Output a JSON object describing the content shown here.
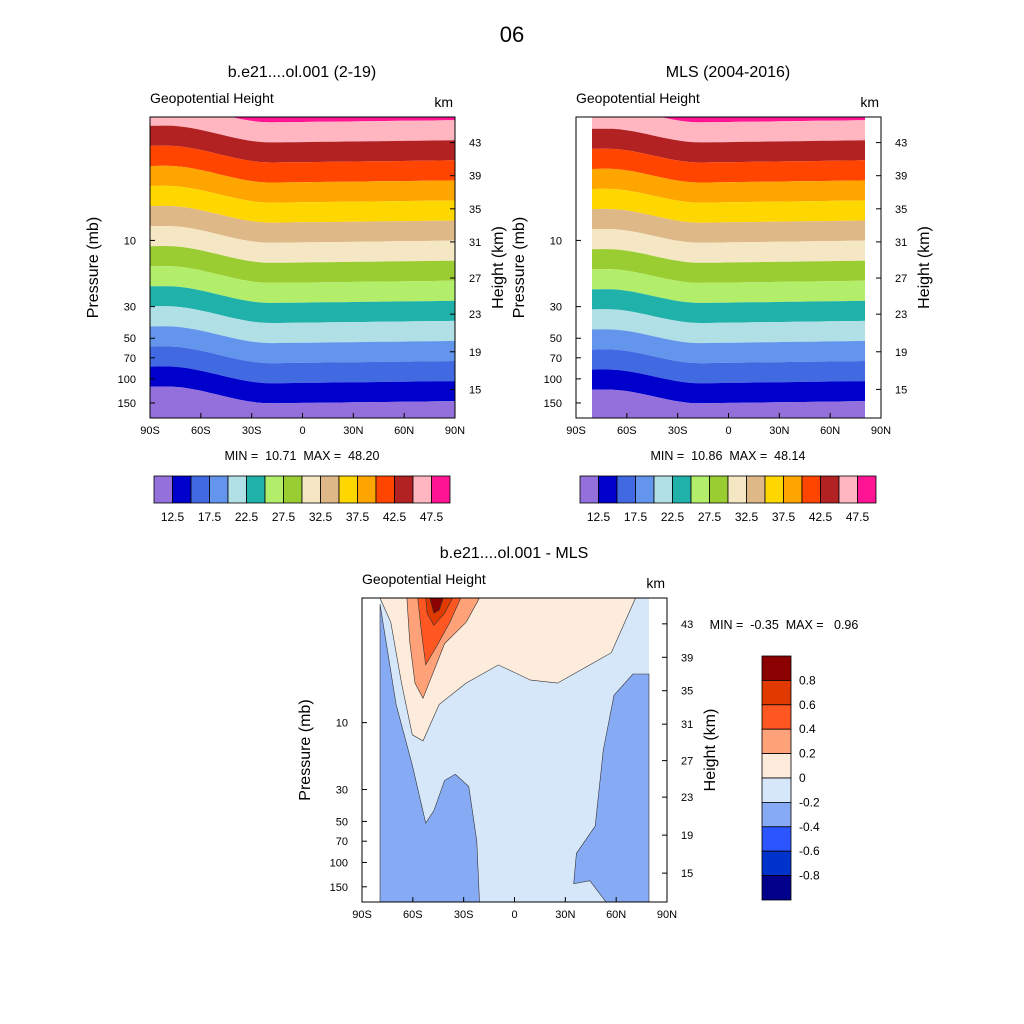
{
  "page_title": "06",
  "chart_data": [
    {
      "type": "filled-contour",
      "title": "b.e21....ol.001 (2-19)",
      "left_label": "Geopotential Height",
      "right_label": "km",
      "xlabel": "",
      "ylabel": "Pressure (mb)",
      "ylabel_right": "Height (km)",
      "x_ticks": [
        "90S",
        "60S",
        "30S",
        "0",
        "30N",
        "60N",
        "90N"
      ],
      "y_ticks": [
        "10",
        "30",
        "50",
        "70",
        "100",
        "150"
      ],
      "y_right_ticks": [
        "43",
        "39",
        "35",
        "31",
        "27",
        "23",
        "19",
        "15"
      ],
      "min_max_text": "MIN =  10.71  MAX =  48.20",
      "min": 10.71,
      "max": 48.2,
      "levels": [
        "12.5",
        "17.5",
        "22.5",
        "27.5",
        "32.5",
        "37.5",
        "42.5",
        "47.5"
      ],
      "colors": [
        "#9370DB",
        "#0000CD",
        "#4169E1",
        "#6495ED",
        "#B0E0E6",
        "#20B2AA",
        "#B3EE6B",
        "#9ACD32",
        "#F5E6C4",
        "#DEB887",
        "#FFD700",
        "#FFA500",
        "#FF4500",
        "#B22222",
        "#FFB6C1",
        "#FF1493"
      ]
    },
    {
      "type": "filled-contour",
      "title": "MLS (2004-2016)",
      "left_label": "Geopotential Height",
      "right_label": "km",
      "xlabel": "",
      "ylabel": "Pressure (mb)",
      "ylabel_right": "Height (km)",
      "x_ticks": [
        "90S",
        "60S",
        "30S",
        "0",
        "30N",
        "60N",
        "90N"
      ],
      "y_ticks": [
        "10",
        "30",
        "50",
        "70",
        "100",
        "150"
      ],
      "y_right_ticks": [
        "43",
        "39",
        "35",
        "31",
        "27",
        "23",
        "19",
        "15"
      ],
      "min_max_text": "MIN =  10.86  MAX =  48.14",
      "min": 10.86,
      "max": 48.14,
      "levels": [
        "12.5",
        "17.5",
        "22.5",
        "27.5",
        "32.5",
        "37.5",
        "42.5",
        "47.5"
      ],
      "colors": [
        "#9370DB",
        "#0000CD",
        "#4169E1",
        "#6495ED",
        "#B0E0E6",
        "#20B2AA",
        "#B3EE6B",
        "#9ACD32",
        "#F5E6C4",
        "#DEB887",
        "#FFD700",
        "#FFA500",
        "#FF4500",
        "#B22222",
        "#FFB6C1",
        "#FF1493"
      ]
    },
    {
      "type": "filled-contour",
      "title": "b.e21....ol.001 - MLS",
      "left_label": "Geopotential Height",
      "right_label": "km",
      "xlabel": "",
      "ylabel": "Pressure (mb)",
      "ylabel_right": "Height (km)",
      "x_ticks": [
        "90S",
        "60S",
        "30S",
        "0",
        "30N",
        "60N",
        "90N"
      ],
      "y_ticks": [
        "10",
        "30",
        "50",
        "70",
        "100",
        "150"
      ],
      "y_right_ticks": [
        "43",
        "39",
        "35",
        "31",
        "27",
        "23",
        "19",
        "15"
      ],
      "min_max_text": "MIN =  -0.35  MAX =   0.96",
      "min": -0.35,
      "max": 0.96,
      "levels": [
        "0.8",
        "0.6",
        "0.4",
        "0.2",
        "0",
        "-0.2",
        "-0.4",
        "-0.6",
        "-0.8"
      ],
      "colors": [
        "#8B0000",
        "#E03A00",
        "#FF5722",
        "#FFA27A",
        "#FDEBDC",
        "#D6E7FA",
        "#87AAF5",
        "#2A55FF",
        "#0033CC",
        "#00008B"
      ]
    }
  ]
}
